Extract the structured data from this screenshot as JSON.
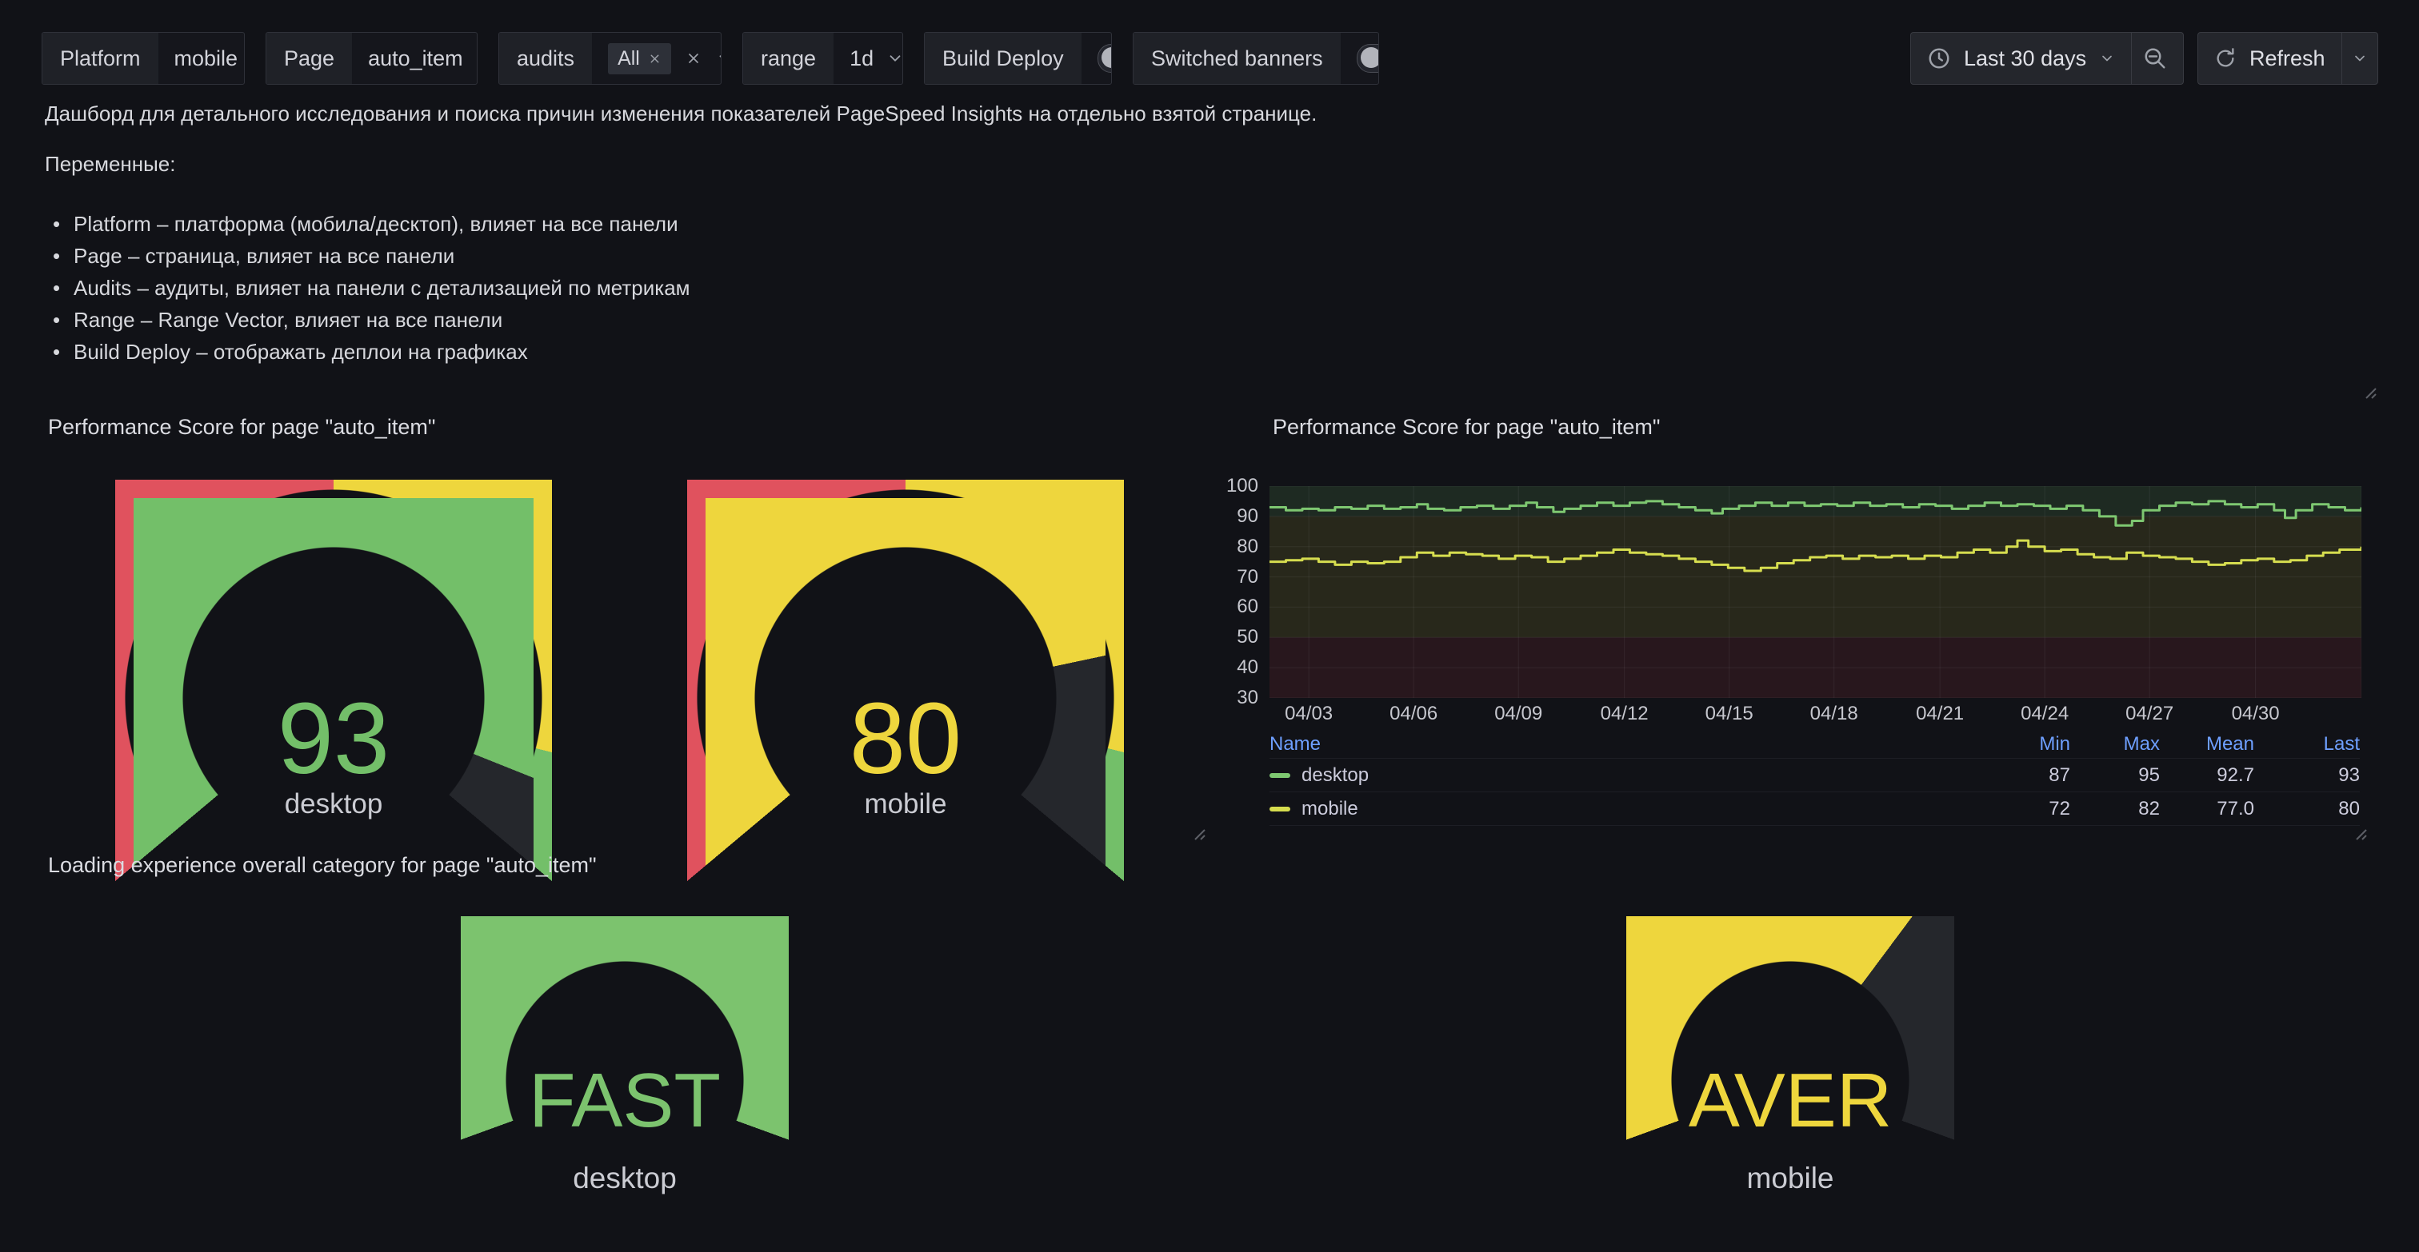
{
  "toolbar": {
    "variables": [
      {
        "label": "Platform",
        "value": "mobile"
      },
      {
        "label": "Page",
        "value": "auto_item"
      },
      {
        "label": "audits",
        "selected_chip": "All"
      },
      {
        "label": "range",
        "value": "1d"
      },
      {
        "label": "Build Deploy",
        "state": "off"
      },
      {
        "label": "Switched banners",
        "state": "off"
      }
    ],
    "time_picker": {
      "label": "Last 30 days"
    },
    "refresh": {
      "label": "Refresh"
    }
  },
  "intro": {
    "description": "Дашборд для детального исследования и поиска причин изменения показателей PageSpeed Insights на отдельно взятой странице.",
    "variables_heading": "Переменные:",
    "bullets": [
      "Platform – платформа (мобила/десктоп), влияет на все панели",
      "Page – страница, влияет на все панели",
      "Audits – аудиты, влияет на панели с детализацией по метрикам",
      "Range – Range Vector, влияет на все панели",
      "Build Deploy – отображать деплои на графиках"
    ]
  },
  "panels": {
    "perf_gauges": {
      "title": "Performance Score for page \"auto_item\""
    },
    "perf_chart": {
      "title": "Performance Score for page \"auto_item\""
    },
    "loading_gauges": {
      "title": "Loading experience overall category for page \"auto_item\""
    }
  },
  "colors": {
    "green": "#73BF69",
    "yellow": "#EED63D",
    "red": "#E0525E",
    "line_green": "#7EC871",
    "line_yellow": "#D6DD4F",
    "unfilled_arc": "#25272c",
    "legend_blue": "#6e9fff"
  },
  "chart_data": [
    {
      "type": "gauge",
      "title": "Performance Score for page \"auto_item\"",
      "min": 0,
      "max": 100,
      "thresholds": [
        {
          "value": 0,
          "color": "#E0525E"
        },
        {
          "value": 50,
          "color": "#EED63D"
        },
        {
          "value": 90,
          "color": "#73BF69"
        }
      ],
      "items": [
        {
          "label": "desktop",
          "value": 93,
          "display": "93",
          "color": "#73BF69"
        },
        {
          "label": "mobile",
          "value": 80,
          "display": "80",
          "color": "#EED63D"
        }
      ]
    },
    {
      "type": "line",
      "title": "Performance Score for page \"auto_item\"",
      "ylim": [
        30,
        100
      ],
      "y_ticks": [
        100,
        90,
        80,
        70,
        60,
        50,
        40,
        30
      ],
      "x_ticks": [
        "04/03",
        "04/06",
        "04/09",
        "04/12",
        "04/15",
        "04/18",
        "04/21",
        "04/24",
        "04/27",
        "04/30"
      ],
      "x_tick_pos": [
        3.6,
        13.2,
        22.8,
        32.5,
        42.1,
        51.7,
        61.4,
        71.0,
        80.6,
        90.3
      ],
      "grid": true,
      "legend_position": "bottom-table",
      "bands": [
        {
          "from": 90,
          "to": 100,
          "color": "rgba(115,191,105,0.14)"
        },
        {
          "from": 50,
          "to": 90,
          "color": "rgba(210,205,60,0.12)"
        },
        {
          "from": 30,
          "to": 50,
          "color": "rgba(242,73,92,0.10)"
        }
      ],
      "legend": {
        "columns": [
          "Name",
          "Min",
          "Max",
          "Mean",
          "Last"
        ],
        "rows": [
          {
            "name": "desktop",
            "color": "#7EC871",
            "min": "87",
            "max": "95",
            "mean": "92.7",
            "last": "93"
          },
          {
            "name": "mobile",
            "color": "#D6DD4F",
            "min": "72",
            "max": "82",
            "mean": "77.0",
            "last": "80"
          }
        ]
      },
      "series": [
        {
          "name": "desktop",
          "color": "#7EC871",
          "points": [
            [
              0,
              93
            ],
            [
              1.5,
              92
            ],
            [
              3,
              92.5
            ],
            [
              4.5,
              92
            ],
            [
              6,
              93
            ],
            [
              7.5,
              92.5
            ],
            [
              9,
              93.5
            ],
            [
              10.5,
              92.5
            ],
            [
              12,
              93
            ],
            [
              13.5,
              94
            ],
            [
              14.5,
              92.5
            ],
            [
              16,
              92
            ],
            [
              17.5,
              93
            ],
            [
              19,
              93.5
            ],
            [
              20.5,
              92.5
            ],
            [
              22,
              93.5
            ],
            [
              23.5,
              94.5
            ],
            [
              24.5,
              93
            ],
            [
              26,
              91.5
            ],
            [
              27,
              92.5
            ],
            [
              28.5,
              93.5
            ],
            [
              30,
              94.5
            ],
            [
              31.5,
              93.5
            ],
            [
              33,
              94.5
            ],
            [
              34.5,
              95
            ],
            [
              36,
              94
            ],
            [
              37.5,
              93
            ],
            [
              39,
              92
            ],
            [
              40.5,
              91
            ],
            [
              41.5,
              92.5
            ],
            [
              43,
              93.5
            ],
            [
              44.5,
              94.5
            ],
            [
              46,
              93.5
            ],
            [
              47.5,
              94.5
            ],
            [
              49,
              93.5
            ],
            [
              50.5,
              94
            ],
            [
              52,
              93.5
            ],
            [
              53.5,
              94.5
            ],
            [
              55,
              93.5
            ],
            [
              56.5,
              94
            ],
            [
              58,
              93
            ],
            [
              59.5,
              94
            ],
            [
              61,
              93.5
            ],
            [
              62.5,
              92.5
            ],
            [
              64,
              93.5
            ],
            [
              65.5,
              94.5
            ],
            [
              67,
              93.5
            ],
            [
              68.5,
              94
            ],
            [
              70,
              93.5
            ],
            [
              71.5,
              92.5
            ],
            [
              73,
              93.5
            ],
            [
              74.5,
              92
            ],
            [
              76,
              90
            ],
            [
              77.5,
              87
            ],
            [
              79,
              88.5
            ],
            [
              80,
              92
            ],
            [
              81.5,
              93.5
            ],
            [
              83,
              94.5
            ],
            [
              84.5,
              94
            ],
            [
              86,
              95
            ],
            [
              87.5,
              94
            ],
            [
              89,
              93
            ],
            [
              90.5,
              94
            ],
            [
              92,
              92
            ],
            [
              93,
              89.5
            ],
            [
              94,
              92
            ],
            [
              95.5,
              94
            ],
            [
              97,
              93
            ],
            [
              98.5,
              92
            ],
            [
              100,
              93
            ]
          ]
        },
        {
          "name": "mobile",
          "color": "#D6DD4F",
          "points": [
            [
              0,
              75
            ],
            [
              1.5,
              75.5
            ],
            [
              3,
              76
            ],
            [
              4.5,
              75
            ],
            [
              6,
              74
            ],
            [
              7.5,
              75
            ],
            [
              9,
              74.5
            ],
            [
              10.5,
              75
            ],
            [
              12,
              76.5
            ],
            [
              13.5,
              78
            ],
            [
              15,
              77
            ],
            [
              16.5,
              78
            ],
            [
              18,
              77.5
            ],
            [
              19.5,
              77
            ],
            [
              21,
              76
            ],
            [
              22.5,
              77
            ],
            [
              24,
              76.5
            ],
            [
              25.5,
              75
            ],
            [
              27,
              76
            ],
            [
              28.5,
              77
            ],
            [
              30,
              78
            ],
            [
              31.5,
              79
            ],
            [
              33,
              78
            ],
            [
              34.5,
              77.5
            ],
            [
              36,
              77
            ],
            [
              37.5,
              76
            ],
            [
              39,
              75
            ],
            [
              40.5,
              74
            ],
            [
              42,
              73
            ],
            [
              43.5,
              72
            ],
            [
              45,
              73
            ],
            [
              46.5,
              74.5
            ],
            [
              48,
              75.5
            ],
            [
              49.5,
              76.5
            ],
            [
              51,
              77
            ],
            [
              52.5,
              76
            ],
            [
              54,
              77
            ],
            [
              55.5,
              76.5
            ],
            [
              57,
              77
            ],
            [
              58.5,
              76
            ],
            [
              60,
              77
            ],
            [
              61.5,
              76.5
            ],
            [
              63,
              78
            ],
            [
              64.5,
              79
            ],
            [
              66,
              78
            ],
            [
              67.5,
              80
            ],
            [
              68.5,
              82
            ],
            [
              69.5,
              80
            ],
            [
              71,
              78.5
            ],
            [
              72.5,
              79
            ],
            [
              74,
              77.5
            ],
            [
              75.5,
              76.5
            ],
            [
              77,
              76
            ],
            [
              78.5,
              78
            ],
            [
              80,
              77
            ],
            [
              81.5,
              76.5
            ],
            [
              83,
              76
            ],
            [
              84.5,
              75
            ],
            [
              86,
              74
            ],
            [
              87.5,
              74.5
            ],
            [
              89,
              75.5
            ],
            [
              90.5,
              76
            ],
            [
              92,
              75
            ],
            [
              93.5,
              75.5
            ],
            [
              95,
              77
            ],
            [
              96.5,
              78
            ],
            [
              98,
              79
            ],
            [
              100,
              80
            ]
          ]
        }
      ]
    },
    {
      "type": "gauge",
      "title": "Loading experience overall category for page \"auto_item\"",
      "items": [
        {
          "label": "desktop",
          "display": "FAST",
          "fraction": 1.0,
          "color": "#7CC36E"
        },
        {
          "label": "mobile",
          "display": "AVER",
          "fraction": 0.667,
          "color": "#EED63D"
        }
      ]
    }
  ]
}
